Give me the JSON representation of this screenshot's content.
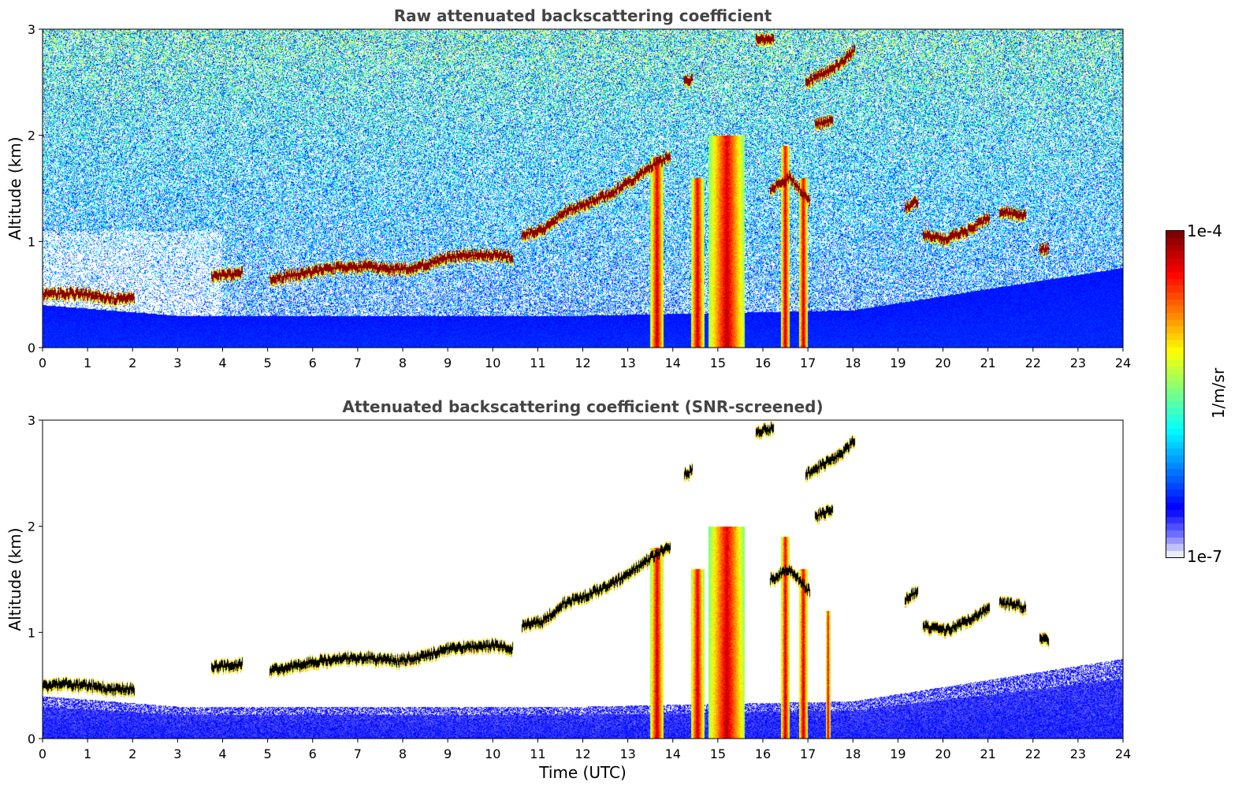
{
  "colors": {
    "background": "#ffffff",
    "title": "#444444",
    "cloud_core": "#8b0000",
    "precip_red": "#ff3300",
    "precip_orange": "#ff9900",
    "precip_yellow": "#ffd800",
    "cyan": "#00c8e0",
    "blue_strong": "#0000ff",
    "blue_light": "#6a6af5",
    "screened_core": "#000000"
  },
  "colorbar": {
    "label": "1/m/sr",
    "max_label": "1e-4",
    "min_label": "1e-7",
    "scale": "log",
    "colormap": "jet",
    "range": [
      1e-07,
      0.0001
    ]
  },
  "chart_data": [
    {
      "type": "heatmap",
      "panel": "raw",
      "title": "Raw attenuated backscattering coefficient",
      "xlabel": "",
      "ylabel": "Altitude (km)",
      "xlim": [
        0,
        24
      ],
      "ylim": [
        0,
        3
      ],
      "xticks": [
        "0",
        "1",
        "2",
        "3",
        "4",
        "5",
        "6",
        "7",
        "8",
        "9",
        "10",
        "11",
        "12",
        "13",
        "14",
        "15",
        "16",
        "17",
        "18",
        "19",
        "20",
        "21",
        "22",
        "23",
        "24"
      ],
      "yticks": [
        "0",
        "1",
        "2",
        "3"
      ],
      "noise": true,
      "features": [
        {
          "kind": "cloud_layer",
          "points": [
            [
              0.0,
              0.5
            ],
            [
              0.5,
              0.51
            ],
            [
              1.0,
              0.5
            ],
            [
              1.3,
              0.48
            ],
            [
              1.6,
              0.46
            ],
            [
              2.0,
              0.47
            ]
          ]
        },
        {
          "kind": "cloud_layer",
          "points": [
            [
              3.8,
              0.68
            ],
            [
              4.2,
              0.69
            ],
            [
              4.4,
              0.7
            ]
          ]
        },
        {
          "kind": "cloud_layer",
          "points": [
            [
              5.1,
              0.65
            ],
            [
              5.8,
              0.7
            ],
            [
              6.5,
              0.75
            ],
            [
              7.2,
              0.76
            ],
            [
              7.9,
              0.73
            ],
            [
              8.5,
              0.78
            ],
            [
              9.0,
              0.85
            ],
            [
              9.6,
              0.87
            ],
            [
              10.1,
              0.88
            ],
            [
              10.4,
              0.85
            ]
          ]
        },
        {
          "kind": "cloud_layer",
          "points": [
            [
              10.7,
              1.07
            ],
            [
              11.1,
              1.1
            ],
            [
              11.6,
              1.28
            ],
            [
              12.1,
              1.35
            ],
            [
              12.6,
              1.45
            ],
            [
              13.0,
              1.55
            ],
            [
              13.5,
              1.7
            ],
            [
              13.9,
              1.8
            ]
          ]
        },
        {
          "kind": "cloud_layer",
          "points": [
            [
              14.3,
              2.5
            ],
            [
              14.4,
              2.52
            ]
          ]
        },
        {
          "kind": "cloud_layer",
          "points": [
            [
              15.9,
              2.9
            ],
            [
              16.2,
              2.92
            ]
          ]
        },
        {
          "kind": "cloud_layer",
          "points": [
            [
              17.0,
              2.5
            ],
            [
              17.4,
              2.6
            ],
            [
              17.8,
              2.7
            ],
            [
              18.0,
              2.8
            ]
          ]
        },
        {
          "kind": "cloud_layer",
          "points": [
            [
              17.2,
              2.1
            ],
            [
              17.5,
              2.15
            ]
          ]
        },
        {
          "kind": "cloud_layer",
          "points": [
            [
              16.2,
              1.5
            ],
            [
              16.6,
              1.6
            ],
            [
              17.0,
              1.4
            ]
          ]
        },
        {
          "kind": "cloud_layer",
          "points": [
            [
              19.2,
              1.32
            ],
            [
              19.4,
              1.38
            ]
          ]
        },
        {
          "kind": "cloud_layer",
          "points": [
            [
              19.6,
              1.05
            ],
            [
              20.1,
              1.02
            ],
            [
              20.6,
              1.12
            ],
            [
              21.0,
              1.22
            ]
          ]
        },
        {
          "kind": "cloud_layer",
          "points": [
            [
              21.3,
              1.28
            ],
            [
              21.8,
              1.24
            ]
          ]
        },
        {
          "kind": "cloud_layer",
          "points": [
            [
              22.2,
              0.93
            ],
            [
              22.3,
              0.93
            ]
          ]
        },
        {
          "kind": "precip_column",
          "x_range": [
            13.5,
            13.8
          ],
          "top": 1.8
        },
        {
          "kind": "precip_column",
          "x_range": [
            14.4,
            14.7
          ],
          "top": 1.6
        },
        {
          "kind": "precip_column",
          "x_range": [
            14.8,
            15.6
          ],
          "top": 2.0
        },
        {
          "kind": "precip_column",
          "x_range": [
            16.4,
            16.6
          ],
          "top": 1.9
        },
        {
          "kind": "precip_column",
          "x_range": [
            16.8,
            17.0
          ],
          "top": 1.6
        },
        {
          "kind": "boundary_layer",
          "top_by_hour": [
            [
              0,
              0.4
            ],
            [
              3,
              0.3
            ],
            [
              6,
              0.3
            ],
            [
              12,
              0.3
            ],
            [
              18,
              0.35
            ],
            [
              21,
              0.55
            ],
            [
              24,
              0.75
            ]
          ]
        }
      ]
    },
    {
      "type": "heatmap",
      "panel": "snr_screened",
      "title": "Attenuated backscattering coefficient (SNR-screened)",
      "xlabel": "Time (UTC)",
      "ylabel": "Altitude (km)",
      "xlim": [
        0,
        24
      ],
      "ylim": [
        0,
        3
      ],
      "xticks": [
        "0",
        "1",
        "2",
        "3",
        "4",
        "5",
        "6",
        "7",
        "8",
        "9",
        "10",
        "11",
        "12",
        "13",
        "14",
        "15",
        "16",
        "17",
        "18",
        "19",
        "20",
        "21",
        "22",
        "23",
        "24"
      ],
      "yticks": [
        "0",
        "1",
        "2",
        "3"
      ],
      "noise": false,
      "features": [
        {
          "kind": "cloud_layer",
          "points": [
            [
              0.0,
              0.5
            ],
            [
              0.5,
              0.51
            ],
            [
              1.0,
              0.5
            ],
            [
              1.3,
              0.48
            ],
            [
              1.6,
              0.46
            ],
            [
              2.0,
              0.47
            ]
          ]
        },
        {
          "kind": "cloud_layer",
          "points": [
            [
              3.8,
              0.68
            ],
            [
              4.2,
              0.69
            ],
            [
              4.4,
              0.7
            ]
          ]
        },
        {
          "kind": "cloud_layer",
          "points": [
            [
              5.1,
              0.65
            ],
            [
              5.8,
              0.7
            ],
            [
              6.5,
              0.75
            ],
            [
              7.2,
              0.76
            ],
            [
              7.9,
              0.73
            ],
            [
              8.5,
              0.78
            ],
            [
              9.0,
              0.85
            ],
            [
              9.6,
              0.87
            ],
            [
              10.1,
              0.88
            ],
            [
              10.4,
              0.85
            ]
          ]
        },
        {
          "kind": "cloud_layer",
          "points": [
            [
              10.7,
              1.07
            ],
            [
              11.1,
              1.1
            ],
            [
              11.6,
              1.28
            ],
            [
              12.1,
              1.35
            ],
            [
              12.6,
              1.45
            ],
            [
              13.0,
              1.55
            ],
            [
              13.5,
              1.7
            ],
            [
              13.9,
              1.8
            ]
          ]
        },
        {
          "kind": "cloud_layer",
          "points": [
            [
              14.3,
              2.5
            ],
            [
              14.4,
              2.52
            ]
          ]
        },
        {
          "kind": "cloud_layer",
          "points": [
            [
              15.9,
              2.9
            ],
            [
              16.2,
              2.92
            ]
          ]
        },
        {
          "kind": "cloud_layer",
          "points": [
            [
              17.0,
              2.5
            ],
            [
              17.4,
              2.6
            ],
            [
              17.8,
              2.7
            ],
            [
              18.0,
              2.8
            ]
          ]
        },
        {
          "kind": "cloud_layer",
          "points": [
            [
              17.2,
              2.1
            ],
            [
              17.5,
              2.15
            ]
          ]
        },
        {
          "kind": "cloud_layer",
          "points": [
            [
              16.2,
              1.5
            ],
            [
              16.6,
              1.6
            ],
            [
              17.0,
              1.4
            ]
          ]
        },
        {
          "kind": "cloud_layer",
          "points": [
            [
              19.2,
              1.32
            ],
            [
              19.4,
              1.38
            ]
          ]
        },
        {
          "kind": "cloud_layer",
          "points": [
            [
              19.6,
              1.05
            ],
            [
              20.1,
              1.02
            ],
            [
              20.6,
              1.12
            ],
            [
              21.0,
              1.22
            ]
          ]
        },
        {
          "kind": "cloud_layer",
          "points": [
            [
              21.3,
              1.28
            ],
            [
              21.8,
              1.24
            ]
          ]
        },
        {
          "kind": "cloud_layer",
          "points": [
            [
              22.2,
              0.93
            ],
            [
              22.3,
              0.93
            ]
          ]
        },
        {
          "kind": "precip_column",
          "x_range": [
            13.5,
            13.8
          ],
          "top": 1.8
        },
        {
          "kind": "precip_column",
          "x_range": [
            14.4,
            14.7
          ],
          "top": 1.6
        },
        {
          "kind": "precip_column",
          "x_range": [
            14.8,
            15.6
          ],
          "top": 2.0
        },
        {
          "kind": "precip_column",
          "x_range": [
            16.4,
            16.6
          ],
          "top": 1.9
        },
        {
          "kind": "precip_column",
          "x_range": [
            16.8,
            17.0
          ],
          "top": 1.6
        },
        {
          "kind": "precip_column",
          "x_range": [
            17.4,
            17.5
          ],
          "top": 1.2
        },
        {
          "kind": "boundary_layer",
          "top_by_hour": [
            [
              0,
              0.4
            ],
            [
              3,
              0.3
            ],
            [
              6,
              0.3
            ],
            [
              12,
              0.3
            ],
            [
              18,
              0.35
            ],
            [
              21,
              0.55
            ],
            [
              24,
              0.75
            ]
          ]
        }
      ]
    }
  ]
}
